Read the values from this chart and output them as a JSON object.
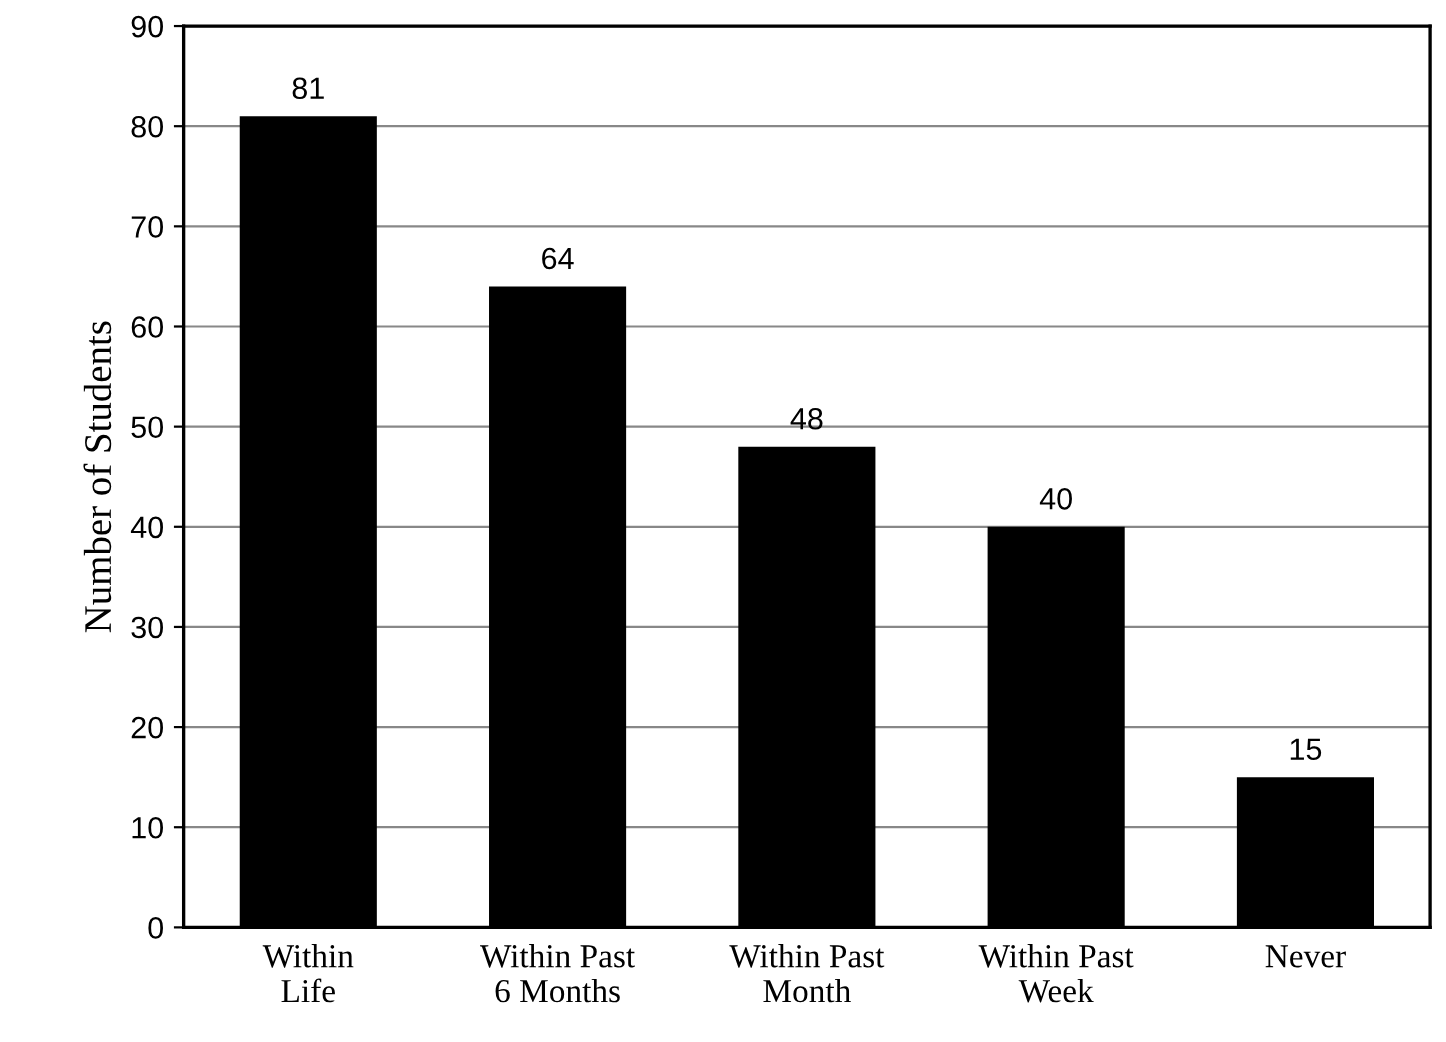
{
  "chart_data": {
    "type": "bar",
    "ylabel": "Number of Students",
    "categories": [
      "Within\nLife",
      "Within Past\n6 Months",
      "Within Past\nMonth",
      "Within Past\nWeek",
      "Never"
    ],
    "values": [
      81,
      64,
      48,
      40,
      15
    ],
    "color": "#000000",
    "ylim": [
      0,
      90
    ],
    "yticks": [
      0,
      10,
      20,
      30,
      40,
      50,
      60,
      70,
      80,
      90
    ],
    "grid": "y",
    "data_labels": true,
    "legend": false
  }
}
